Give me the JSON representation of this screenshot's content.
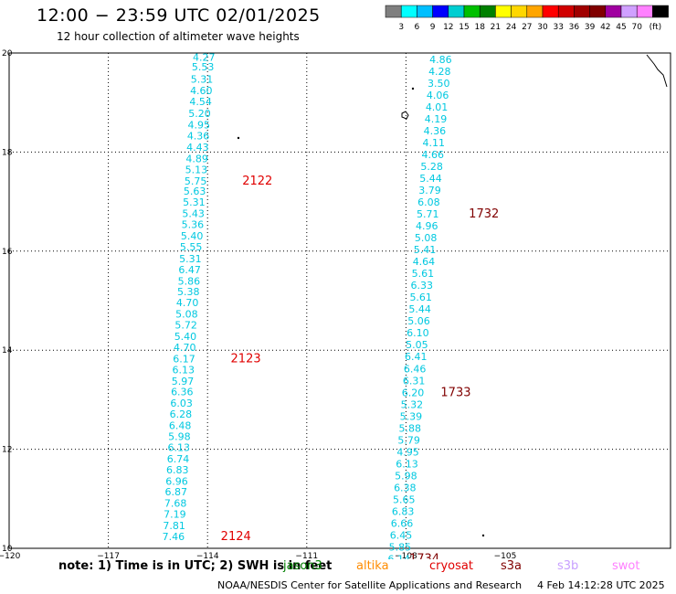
{
  "header": {
    "title": "12:00 − 23:59 UTC 02/01/2025",
    "subtitle": "12 hour collection of altimeter wave heights"
  },
  "colorbar": {
    "colors": [
      "#7f7f7f",
      "#00ffff",
      "#00bfff",
      "#0000ff",
      "#00ced1",
      "#00c000",
      "#008000",
      "#ffff00",
      "#ffd700",
      "#ffa500",
      "#ff0000",
      "#d00000",
      "#a00000",
      "#800000",
      "#a000a0",
      "#d0a0ff",
      "#ff80ff",
      "#000000"
    ],
    "labels": [
      "3",
      "6",
      "9",
      "12",
      "15",
      "18",
      "21",
      "24",
      "27",
      "30",
      "33",
      "36",
      "39",
      "42",
      "45",
      "70"
    ],
    "unit": "(ft)"
  },
  "chart_data": {
    "type": "scatter",
    "xlim": [
      -120,
      -100
    ],
    "ylim": [
      10,
      20
    ],
    "x_ticks": [
      "−120",
      "−117",
      "−114",
      "−111",
      "−108",
      "−105"
    ],
    "y_ticks": [
      "20",
      "18",
      "16",
      "14",
      "12",
      "10"
    ],
    "grid": true,
    "tracks": [
      {
        "color": "#00c8e0",
        "points": [
          {
            "lon": -114.11,
            "lat": 19.92,
            "v": "4.27"
          },
          {
            "lon": -114.14,
            "lat": 19.72,
            "v": "5.53"
          },
          {
            "lon": -114.17,
            "lat": 19.47,
            "v": "5.31"
          },
          {
            "lon": -114.19,
            "lat": 19.24,
            "v": "4.60"
          },
          {
            "lon": -114.21,
            "lat": 19.02,
            "v": "4.54"
          },
          {
            "lon": -114.24,
            "lat": 18.78,
            "v": "5.20"
          },
          {
            "lon": -114.26,
            "lat": 18.55,
            "v": "4.95"
          },
          {
            "lon": -114.28,
            "lat": 18.33,
            "v": "4.36"
          },
          {
            "lon": -114.3,
            "lat": 18.1,
            "v": "4.43"
          },
          {
            "lon": -114.32,
            "lat": 17.87,
            "v": "4.89"
          },
          {
            "lon": -114.34,
            "lat": 17.65,
            "v": "5.13"
          },
          {
            "lon": -114.36,
            "lat": 17.42,
            "v": "5.75"
          },
          {
            "lon": -114.39,
            "lat": 17.21,
            "v": "5.63"
          },
          {
            "lon": -114.41,
            "lat": 16.99,
            "v": "5.31"
          },
          {
            "lon": -114.43,
            "lat": 16.76,
            "v": "5.43"
          },
          {
            "lon": -114.45,
            "lat": 16.54,
            "v": "5.36"
          },
          {
            "lon": -114.47,
            "lat": 16.31,
            "v": "5.40"
          },
          {
            "lon": -114.5,
            "lat": 16.09,
            "v": "5.55"
          },
          {
            "lon": -114.52,
            "lat": 15.85,
            "v": "5.31"
          },
          {
            "lon": -114.54,
            "lat": 15.63,
            "v": "6.47"
          },
          {
            "lon": -114.56,
            "lat": 15.4,
            "v": "5.86"
          },
          {
            "lon": -114.58,
            "lat": 15.18,
            "v": "5.38"
          },
          {
            "lon": -114.61,
            "lat": 14.96,
            "v": "4.70"
          },
          {
            "lon": -114.63,
            "lat": 14.73,
            "v": "5.08"
          },
          {
            "lon": -114.65,
            "lat": 14.51,
            "v": "5.72"
          },
          {
            "lon": -114.67,
            "lat": 14.28,
            "v": "5.40"
          },
          {
            "lon": -114.69,
            "lat": 14.06,
            "v": "4.70"
          },
          {
            "lon": -114.71,
            "lat": 13.83,
            "v": "6.17"
          },
          {
            "lon": -114.73,
            "lat": 13.61,
            "v": "6.13"
          },
          {
            "lon": -114.75,
            "lat": 13.38,
            "v": "5.97"
          },
          {
            "lon": -114.77,
            "lat": 13.16,
            "v": "6.36"
          },
          {
            "lon": -114.79,
            "lat": 12.93,
            "v": "6.03"
          },
          {
            "lon": -114.81,
            "lat": 12.71,
            "v": "6.28"
          },
          {
            "lon": -114.83,
            "lat": 12.48,
            "v": "6.48"
          },
          {
            "lon": -114.85,
            "lat": 12.26,
            "v": "5.98"
          },
          {
            "lon": -114.87,
            "lat": 12.04,
            "v": "6.13"
          },
          {
            "lon": -114.89,
            "lat": 11.81,
            "v": "6.74"
          },
          {
            "lon": -114.91,
            "lat": 11.59,
            "v": "6.83"
          },
          {
            "lon": -114.93,
            "lat": 11.36,
            "v": "6.96"
          },
          {
            "lon": -114.95,
            "lat": 11.14,
            "v": "6.87"
          },
          {
            "lon": -114.97,
            "lat": 10.91,
            "v": "7.68"
          },
          {
            "lon": -114.99,
            "lat": 10.69,
            "v": "7.19"
          },
          {
            "lon": -115.01,
            "lat": 10.46,
            "v": "7.81"
          },
          {
            "lon": -115.03,
            "lat": 10.24,
            "v": "7.46"
          }
        ],
        "labels": [
          {
            "lon": -112.95,
            "lat": 17.42,
            "t": "2122",
            "color": "#e00000"
          },
          {
            "lon": -113.3,
            "lat": 13.83,
            "t": "2123",
            "color": "#e00000"
          },
          {
            "lon": -113.6,
            "lat": 10.24,
            "t": "2124",
            "color": "#e00000"
          }
        ]
      },
      {
        "color": "#00c8e0",
        "points": [
          {
            "lon": -106.95,
            "lat": 19.87,
            "v": "4.86"
          },
          {
            "lon": -106.98,
            "lat": 19.63,
            "v": "4.28"
          },
          {
            "lon": -107.01,
            "lat": 19.39,
            "v": "3.50"
          },
          {
            "lon": -107.04,
            "lat": 19.15,
            "v": "4.06"
          },
          {
            "lon": -107.07,
            "lat": 18.91,
            "v": "4.01"
          },
          {
            "lon": -107.1,
            "lat": 18.67,
            "v": "4.19"
          },
          {
            "lon": -107.13,
            "lat": 18.43,
            "v": "4.36"
          },
          {
            "lon": -107.16,
            "lat": 18.19,
            "v": "4.11"
          },
          {
            "lon": -107.19,
            "lat": 17.95,
            "v": "4.66"
          },
          {
            "lon": -107.22,
            "lat": 17.71,
            "v": "5.28"
          },
          {
            "lon": -107.25,
            "lat": 17.47,
            "v": "5.44"
          },
          {
            "lon": -107.28,
            "lat": 17.23,
            "v": "3.79"
          },
          {
            "lon": -107.31,
            "lat": 16.99,
            "v": "6.08"
          },
          {
            "lon": -107.34,
            "lat": 16.75,
            "v": "5.71"
          },
          {
            "lon": -107.37,
            "lat": 16.51,
            "v": "4.96"
          },
          {
            "lon": -107.4,
            "lat": 16.27,
            "v": "5.08"
          },
          {
            "lon": -107.43,
            "lat": 16.03,
            "v": "5.41"
          },
          {
            "lon": -107.46,
            "lat": 15.79,
            "v": "4.64"
          },
          {
            "lon": -107.49,
            "lat": 15.55,
            "v": "5.61"
          },
          {
            "lon": -107.52,
            "lat": 15.31,
            "v": "6.33"
          },
          {
            "lon": -107.55,
            "lat": 15.07,
            "v": "5.61"
          },
          {
            "lon": -107.58,
            "lat": 14.83,
            "v": "5.44"
          },
          {
            "lon": -107.61,
            "lat": 14.59,
            "v": "5.06"
          },
          {
            "lon": -107.64,
            "lat": 14.35,
            "v": "6.10"
          },
          {
            "lon": -107.67,
            "lat": 14.11,
            "v": "5.05"
          },
          {
            "lon": -107.7,
            "lat": 13.87,
            "v": "6.41"
          },
          {
            "lon": -107.73,
            "lat": 13.63,
            "v": "6.46"
          },
          {
            "lon": -107.76,
            "lat": 13.39,
            "v": "6.31"
          },
          {
            "lon": -107.79,
            "lat": 13.15,
            "v": "6.20"
          },
          {
            "lon": -107.82,
            "lat": 12.91,
            "v": "5.32"
          },
          {
            "lon": -107.85,
            "lat": 12.67,
            "v": "5.39"
          },
          {
            "lon": -107.88,
            "lat": 12.43,
            "v": "5.88"
          },
          {
            "lon": -107.91,
            "lat": 12.19,
            "v": "5.79"
          },
          {
            "lon": -107.94,
            "lat": 11.95,
            "v": "4.95"
          },
          {
            "lon": -107.97,
            "lat": 11.71,
            "v": "6.13"
          },
          {
            "lon": -108.0,
            "lat": 11.47,
            "v": "5.98"
          },
          {
            "lon": -108.03,
            "lat": 11.23,
            "v": "6.38"
          },
          {
            "lon": -108.06,
            "lat": 10.99,
            "v": "5.65"
          },
          {
            "lon": -108.09,
            "lat": 10.75,
            "v": "6.83"
          },
          {
            "lon": -108.12,
            "lat": 10.51,
            "v": "6.66"
          },
          {
            "lon": -108.15,
            "lat": 10.27,
            "v": "6.45"
          },
          {
            "lon": -108.18,
            "lat": 10.03,
            "v": "5.85"
          },
          {
            "lon": -108.21,
            "lat": 9.79,
            "v": "6.14"
          }
        ],
        "labels": [
          {
            "lon": -106.1,
            "lat": 16.75,
            "t": "1732",
            "color": "#800000"
          },
          {
            "lon": -106.95,
            "lat": 13.15,
            "t": "1733",
            "color": "#800000"
          },
          {
            "lon": -107.9,
            "lat": 9.79,
            "t": "1734",
            "color": "#800000"
          }
        ]
      }
    ]
  },
  "footer": {
    "note": "note:  1) Time is in UTC; 2) SWH is in feet",
    "legend": [
      {
        "name": "jason3",
        "color": "#008000"
      },
      {
        "name": "altika",
        "color": "#ff8c00"
      },
      {
        "name": "cryosat",
        "color": "#e00000"
      },
      {
        "name": "s3a",
        "color": "#800000"
      },
      {
        "name": "s3b",
        "color": "#c8a0ff"
      },
      {
        "name": "swot",
        "color": "#ff80ff"
      }
    ],
    "credit": "NOAA/NESDIS Center for Satellite Applications and Research",
    "timestamp": "4 Feb 14:12:28 UTC 2025"
  }
}
